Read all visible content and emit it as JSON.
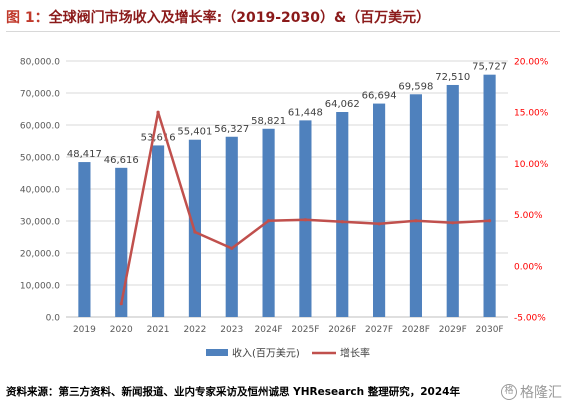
{
  "header": {
    "fig_label": "图 1：",
    "title_text": "全球阀门市场收入及增长率:（2019-2030）&（百万美元）"
  },
  "source_text": "资料来源：第三方资料、新闻报道、业内专家采访及恒州诚思 YHResearch 整理研究，2024年",
  "watermark": {
    "icon": "格",
    "text": "格隆汇"
  },
  "colors": {
    "bar": "#4f81bd",
    "line": "#c0504d",
    "right_axis_text": "#ff0000",
    "grid": "#d9d9d9"
  },
  "chart_data": {
    "type": "bar",
    "categories": [
      "2019",
      "2020",
      "2021",
      "2022",
      "2023",
      "2024F",
      "2025F",
      "2026F",
      "2027F",
      "2028F",
      "2029F",
      "2030F"
    ],
    "series": [
      {
        "name": "收入(百万美元)",
        "type": "bar",
        "axis": "left",
        "values": [
          48417,
          46616,
          53616,
          55401,
          56327,
          58821,
          61448,
          64062,
          66694,
          69598,
          72510,
          75727
        ],
        "labels": [
          "48,417",
          "46,616",
          "53,616",
          "55,401",
          "56,327",
          "58,821",
          "61,448",
          "64,062",
          "66,694",
          "69,598",
          "72,510",
          "75,727"
        ]
      },
      {
        "name": "增长率",
        "type": "line",
        "axis": "right",
        "values": [
          null,
          -3.7,
          15.0,
          3.3,
          1.7,
          4.4,
          4.5,
          4.3,
          4.1,
          4.4,
          4.2,
          4.4
        ]
      }
    ],
    "y_left": {
      "ylim": [
        0,
        80000
      ],
      "ticks": [
        0,
        10000,
        20000,
        30000,
        40000,
        50000,
        60000,
        70000,
        80000
      ],
      "tick_labels": [
        "0.0",
        "10,000.0",
        "20,000.0",
        "30,000.0",
        "40,000.0",
        "50,000.0",
        "60,000.0",
        "70,000.0",
        "80,000.0"
      ]
    },
    "y_right": {
      "ylim": [
        -5,
        20
      ],
      "ticks": [
        -5,
        0,
        5,
        10,
        15,
        20
      ],
      "tick_labels": [
        "-5.00%",
        "0.00%",
        "5.00%",
        "10.00%",
        "15.00%",
        "20.00%"
      ]
    },
    "grid": true,
    "legend_position": "bottom"
  }
}
